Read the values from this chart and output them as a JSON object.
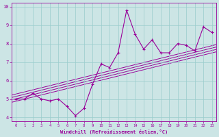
{
  "xlabel": "Windchill (Refroidissement éolien,°C)",
  "x_data": [
    0,
    1,
    2,
    3,
    4,
    5,
    6,
    7,
    8,
    9,
    10,
    11,
    12,
    13,
    14,
    15,
    16,
    17,
    18,
    19,
    20,
    21,
    22,
    23
  ],
  "y_data": [
    5.0,
    5.0,
    5.3,
    5.0,
    4.9,
    5.0,
    4.6,
    4.1,
    4.5,
    5.8,
    6.9,
    6.7,
    7.5,
    9.8,
    8.5,
    7.7,
    8.2,
    7.5,
    7.5,
    8.0,
    7.9,
    7.6,
    8.9,
    8.6
  ],
  "line_color": "#990099",
  "bg_color": "#cce5e5",
  "grid_color": "#99cccc",
  "ylim": [
    3.8,
    10.2
  ],
  "xlim": [
    -0.5,
    23.5
  ],
  "yticks": [
    4,
    5,
    6,
    7,
    8,
    9,
    10
  ],
  "xticks": [
    0,
    1,
    2,
    3,
    4,
    5,
    6,
    7,
    8,
    9,
    10,
    11,
    12,
    13,
    14,
    15,
    16,
    17,
    18,
    19,
    20,
    21,
    22,
    23
  ],
  "reg_lines": [
    {
      "x0": -0.5,
      "y0": 4.82,
      "x1": 23.5,
      "y1": 7.55
    },
    {
      "x0": -0.5,
      "y0": 4.95,
      "x1": 23.5,
      "y1": 7.68
    },
    {
      "x0": -0.5,
      "y0": 5.08,
      "x1": 23.5,
      "y1": 7.81
    },
    {
      "x0": -0.5,
      "y0": 5.21,
      "x1": 23.5,
      "y1": 7.94
    }
  ]
}
